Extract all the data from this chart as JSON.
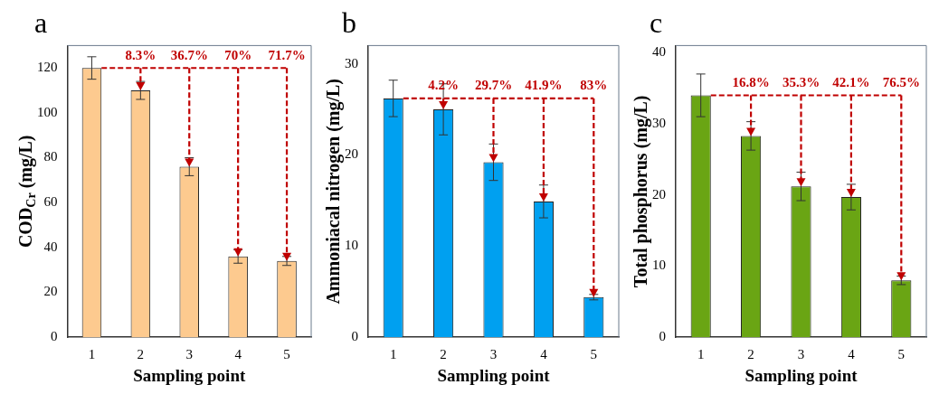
{
  "chart_data": [
    {
      "type": "bar",
      "title": "a",
      "xlabel": "Sampling point",
      "ylabel": "COD$_{Cr}$ (mg/L)",
      "categories": [
        "1",
        "2",
        "3",
        "4",
        "5"
      ],
      "values": [
        120,
        110,
        76,
        36,
        34
      ],
      "errors": [
        5,
        4,
        4,
        3,
        2
      ],
      "color": "#fdca8f",
      "ylim": [
        0,
        130
      ],
      "yticks": [
        0,
        20,
        40,
        60,
        80,
        100,
        120
      ],
      "grid": false,
      "annotations": [
        {
          "text": "8.3%",
          "x": "2",
          "y": 110
        },
        {
          "text": "36.7%",
          "x": "3",
          "y": 76
        },
        {
          "text": "70%",
          "x": "4",
          "y": 36
        },
        {
          "text": "71.7%",
          "x": "5",
          "y": 34
        }
      ]
    },
    {
      "type": "bar",
      "title": "b",
      "xlabel": "Sampling point",
      "ylabel": "Ammoniacal nitrogen (mg/L)",
      "categories": [
        "1",
        "2",
        "3",
        "4",
        "5"
      ],
      "values": [
        26.2,
        25,
        19.2,
        14.9,
        4.4
      ],
      "errors": [
        2,
        2.8,
        2,
        1.8,
        0.3
      ],
      "color": "#00a0f0",
      "ylim": [
        0,
        32
      ],
      "yticks": [
        0,
        10,
        20,
        30
      ],
      "grid": false,
      "annotations": [
        {
          "text": "4.2%",
          "x": "2",
          "y": 25
        },
        {
          "text": "29.7%",
          "x": "3",
          "y": 19.2
        },
        {
          "text": "41.9%",
          "x": "4",
          "y": 14.9
        },
        {
          "text": "83%",
          "x": "5",
          "y": 4.4
        }
      ]
    },
    {
      "type": "bar",
      "title": "c",
      "xlabel": "Sampling point",
      "ylabel": "Total phosphorus (mg/L)",
      "categories": [
        "1",
        "2",
        "3",
        "4",
        "5"
      ],
      "values": [
        34,
        28.3,
        21.2,
        19.7,
        8
      ],
      "errors": [
        3,
        2,
        2,
        1.8,
        0.6
      ],
      "color": "#6aa514",
      "ylim": [
        0,
        41
      ],
      "yticks": [
        0,
        10,
        20,
        30,
        40
      ],
      "grid": false,
      "annotations": [
        {
          "text": "16.8%",
          "x": "2",
          "y": 28.3
        },
        {
          "text": "35.3%",
          "x": "3",
          "y": 21.2
        },
        {
          "text": "42.1%",
          "x": "4",
          "y": 19.7
        },
        {
          "text": "76.5%",
          "x": "5",
          "y": 8
        }
      ]
    }
  ]
}
